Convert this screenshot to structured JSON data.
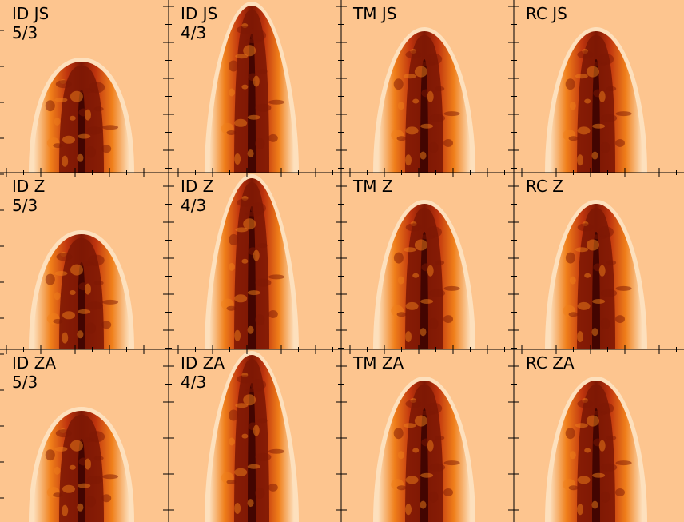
{
  "colors": {
    "background": "#fdc58f",
    "light": "#fde0bd",
    "mid": "#f07f1a",
    "deep": "#c0350e",
    "dark": "#7e1804",
    "core": "#430501"
  },
  "panels": [
    [
      {
        "scheme": "ID JS",
        "gamma": "5/3",
        "plume": "squat"
      },
      {
        "scheme": "ID JS",
        "gamma": "4/3",
        "plume": "tall"
      },
      {
        "scheme": "TM JS",
        "gamma": "",
        "plume": "medium"
      },
      {
        "scheme": "RC JS",
        "gamma": "",
        "plume": "medium"
      }
    ],
    [
      {
        "scheme": "ID Z",
        "gamma": "5/3",
        "plume": "squat"
      },
      {
        "scheme": "ID Z",
        "gamma": "4/3",
        "plume": "tall"
      },
      {
        "scheme": "TM Z",
        "gamma": "",
        "plume": "medium"
      },
      {
        "scheme": "RC Z",
        "gamma": "",
        "plume": "medium"
      }
    ],
    [
      {
        "scheme": "ID ZA",
        "gamma": "5/3",
        "plume": "squat"
      },
      {
        "scheme": "ID ZA",
        "gamma": "4/3",
        "plume": "tall"
      },
      {
        "scheme": "TM ZA",
        "gamma": "",
        "plume": "medium"
      },
      {
        "scheme": "RC ZA",
        "gamma": "",
        "plume": "medium"
      }
    ]
  ]
}
